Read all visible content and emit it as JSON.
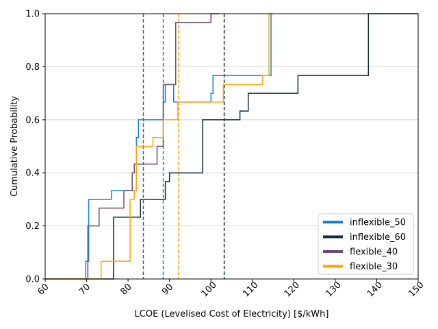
{
  "chart_data": {
    "type": "line",
    "subtype": "step-cdf",
    "xlabel": "LCOE (Levelised Cost of Electricity) [$/kWh]",
    "ylabel": "Cumulative Probability",
    "xlim": [
      60,
      150
    ],
    "ylim": [
      0,
      1
    ],
    "xticks": [
      60,
      70,
      80,
      90,
      100,
      110,
      120,
      130,
      140,
      150
    ],
    "yticks": [
      0.0,
      0.2,
      0.4,
      0.6,
      0.8,
      1.0
    ],
    "ytick_labels": [
      "0.0",
      "0.2",
      "0.4",
      "0.6",
      "0.8",
      "1.0"
    ],
    "xtick_rotation": 45,
    "grid": "y-only",
    "legend_position": "lower-right",
    "series": [
      {
        "name": "inflexible_50",
        "color": "#0a84e0",
        "mean": 88.5,
        "points": [
          [
            60,
            0
          ],
          [
            69.8,
            0
          ],
          [
            69.8,
            0.067
          ],
          [
            70.5,
            0.067
          ],
          [
            70.5,
            0.3
          ],
          [
            76,
            0.3
          ],
          [
            76,
            0.333
          ],
          [
            82,
            0.333
          ],
          [
            82,
            0.533
          ],
          [
            82.5,
            0.533
          ],
          [
            82.5,
            0.6
          ],
          [
            88.5,
            0.6
          ],
          [
            88.5,
            0.667
          ],
          [
            89,
            0.667
          ],
          [
            89,
            0.733
          ],
          [
            91,
            0.733
          ],
          [
            91,
            0.667
          ],
          [
            92,
            0.667
          ],
          [
            100,
            0.667
          ],
          [
            100,
            0.7
          ],
          [
            100.5,
            0.7
          ],
          [
            100.5,
            0.767
          ],
          [
            114.5,
            0.767
          ],
          [
            114.5,
            1
          ],
          [
            115,
            1
          ]
        ]
      },
      {
        "name": "inflexible_60",
        "color": "#0f2b3d",
        "mean": 103.2,
        "points": [
          [
            60,
            0
          ],
          [
            76.5,
            0
          ],
          [
            76.5,
            0.233
          ],
          [
            83,
            0.233
          ],
          [
            83,
            0.3
          ],
          [
            89,
            0.3
          ],
          [
            89,
            0.367
          ],
          [
            90,
            0.367
          ],
          [
            90,
            0.4
          ],
          [
            98,
            0.4
          ],
          [
            98,
            0.6
          ],
          [
            107,
            0.6
          ],
          [
            107,
            0.633
          ],
          [
            109,
            0.633
          ],
          [
            109,
            0.7
          ],
          [
            121,
            0.7
          ],
          [
            121,
            0.767
          ],
          [
            138,
            0.767
          ],
          [
            138,
            1
          ],
          [
            150,
            1
          ]
        ]
      },
      {
        "name": "flexible_40",
        "color": "#6b4c6e",
        "mean": 83.7,
        "points": [
          [
            60,
            0
          ],
          [
            70.3,
            0
          ],
          [
            70.3,
            0.2
          ],
          [
            73,
            0.2
          ],
          [
            73,
            0.267
          ],
          [
            79,
            0.267
          ],
          [
            79,
            0.333
          ],
          [
            81,
            0.333
          ],
          [
            81,
            0.4
          ],
          [
            81.5,
            0.4
          ],
          [
            81.5,
            0.433
          ],
          [
            87,
            0.433
          ],
          [
            87,
            0.5
          ],
          [
            88.5,
            0.5
          ],
          [
            88.5,
            0.733
          ],
          [
            91.5,
            0.733
          ],
          [
            91.5,
            0.967
          ],
          [
            100,
            0.967
          ],
          [
            100,
            1
          ],
          [
            102,
            1
          ]
        ]
      },
      {
        "name": "flexible_30",
        "color": "#ffa500",
        "mean": 92.2,
        "points": [
          [
            60,
            0
          ],
          [
            73.5,
            0
          ],
          [
            73.5,
            0.067
          ],
          [
            80.5,
            0.067
          ],
          [
            80.5,
            0.3
          ],
          [
            81.5,
            0.3
          ],
          [
            81.5,
            0.333
          ],
          [
            82,
            0.333
          ],
          [
            82,
            0.5
          ],
          [
            86,
            0.5
          ],
          [
            86,
            0.533
          ],
          [
            88.5,
            0.533
          ],
          [
            88.5,
            0.6
          ],
          [
            92,
            0.6
          ],
          [
            92,
            0.667
          ],
          [
            103,
            0.667
          ],
          [
            103,
            0.733
          ],
          [
            112.5,
            0.733
          ],
          [
            112.5,
            0.767
          ],
          [
            114,
            0.767
          ],
          [
            114,
            1
          ],
          [
            115,
            1
          ]
        ]
      }
    ]
  }
}
